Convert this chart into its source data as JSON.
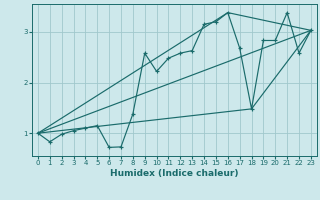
{
  "xlabel": "Humidex (Indice chaleur)",
  "background_color": "#cde8eb",
  "grid_color": "#a0c8cc",
  "line_color": "#1a6b6b",
  "xlim": [
    -0.5,
    23.5
  ],
  "ylim": [
    0.55,
    3.55
  ],
  "yticks": [
    1,
    2,
    3
  ],
  "xticks": [
    0,
    1,
    2,
    3,
    4,
    5,
    6,
    7,
    8,
    9,
    10,
    11,
    12,
    13,
    14,
    15,
    16,
    17,
    18,
    19,
    20,
    21,
    22,
    23
  ],
  "series1_x": [
    0,
    1,
    2,
    3,
    4,
    5,
    6,
    7,
    8,
    9,
    10,
    11,
    12,
    13,
    14,
    15,
    16,
    17,
    18,
    19,
    20,
    21,
    22,
    23
  ],
  "series1_y": [
    1.0,
    0.83,
    0.98,
    1.05,
    1.1,
    1.15,
    0.72,
    0.73,
    1.38,
    2.58,
    2.22,
    2.48,
    2.58,
    2.63,
    3.15,
    3.2,
    3.38,
    2.68,
    1.48,
    2.83,
    2.83,
    3.38,
    2.58,
    3.03
  ],
  "series2_x": [
    0,
    23
  ],
  "series2_y": [
    1.0,
    3.03
  ],
  "series3_x": [
    0,
    16,
    23
  ],
  "series3_y": [
    1.0,
    3.38,
    3.03
  ],
  "series4_x": [
    0,
    18,
    23
  ],
  "series4_y": [
    1.0,
    1.48,
    3.03
  ]
}
